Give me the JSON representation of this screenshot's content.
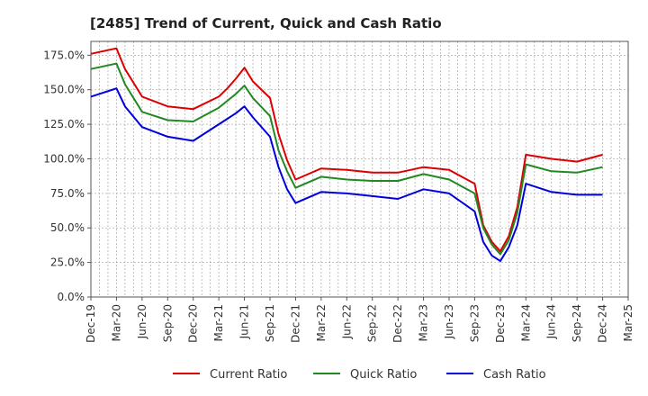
{
  "chart_data": {
    "type": "line",
    "title": "[2485]  Trend of Current, Quick and Cash Ratio",
    "xlabel": "",
    "ylabel": "",
    "ylim": [
      0,
      185
    ],
    "yticks": [
      0,
      25,
      50,
      75,
      100,
      125,
      150,
      175
    ],
    "ytick_labels": [
      "0.0%",
      "25.0%",
      "50.0%",
      "75.0%",
      "100.0%",
      "125.0%",
      "150.0%",
      "175.0%"
    ],
    "xticks": [
      "Dec-19",
      "Mar-20",
      "Jun-20",
      "Sep-20",
      "Dec-20",
      "Mar-21",
      "Jun-21",
      "Sep-21",
      "Dec-21",
      "Mar-22",
      "Jun-22",
      "Sep-22",
      "Dec-22",
      "Mar-23",
      "Jun-23",
      "Sep-23",
      "Dec-23",
      "Mar-24",
      "Jun-24",
      "Sep-24",
      "Dec-24",
      "Mar-25"
    ],
    "x_months": [
      0,
      3,
      6,
      9,
      12,
      15,
      18,
      21,
      24,
      27,
      30,
      33,
      36,
      39,
      42,
      45,
      48,
      51,
      54,
      57,
      60,
      63
    ],
    "grid": true,
    "legend_position": "bottom",
    "series": [
      {
        "name": "Current Ratio",
        "color": "#dd0000",
        "x": [
          0,
          3,
          4,
          6,
          9,
          12,
          15,
          16,
          17,
          18,
          19,
          21,
          22,
          23,
          24,
          27,
          30,
          33,
          36,
          39,
          42,
          45,
          46,
          47,
          48,
          49,
          50,
          51,
          54,
          57,
          60
        ],
        "values": [
          176,
          180,
          165,
          145,
          138,
          136,
          145,
          151,
          158,
          166,
          156,
          144,
          118,
          99,
          85,
          93,
          92,
          90,
          90,
          94,
          92,
          82,
          52,
          40,
          33,
          44,
          65,
          103,
          100,
          98,
          103
        ]
      },
      {
        "name": "Quick Ratio",
        "color": "#228822",
        "x": [
          0,
          3,
          4,
          6,
          9,
          12,
          15,
          16,
          17,
          18,
          19,
          21,
          22,
          23,
          24,
          27,
          30,
          33,
          36,
          39,
          42,
          45,
          46,
          47,
          48,
          49,
          50,
          51,
          54,
          57,
          60
        ],
        "values": [
          165,
          169,
          154,
          134,
          128,
          127,
          137,
          142,
          147,
          153,
          144,
          131,
          106,
          91,
          79,
          87,
          85,
          84,
          84,
          89,
          85,
          75,
          50,
          38,
          31,
          41,
          61,
          96,
          91,
          90,
          94
        ]
      },
      {
        "name": "Cash Ratio",
        "color": "#0000dd",
        "x": [
          0,
          3,
          4,
          6,
          9,
          12,
          15,
          16,
          17,
          18,
          19,
          21,
          22,
          23,
          24,
          27,
          30,
          33,
          36,
          39,
          42,
          45,
          46,
          47,
          48,
          49,
          50,
          51,
          54,
          57,
          60
        ],
        "values": [
          145,
          151,
          138,
          123,
          116,
          113,
          125,
          129,
          133,
          138,
          130,
          116,
          94,
          78,
          68,
          76,
          75,
          73,
          71,
          78,
          75,
          62,
          40,
          30,
          26,
          36,
          52,
          82,
          76,
          74,
          74
        ]
      }
    ]
  }
}
